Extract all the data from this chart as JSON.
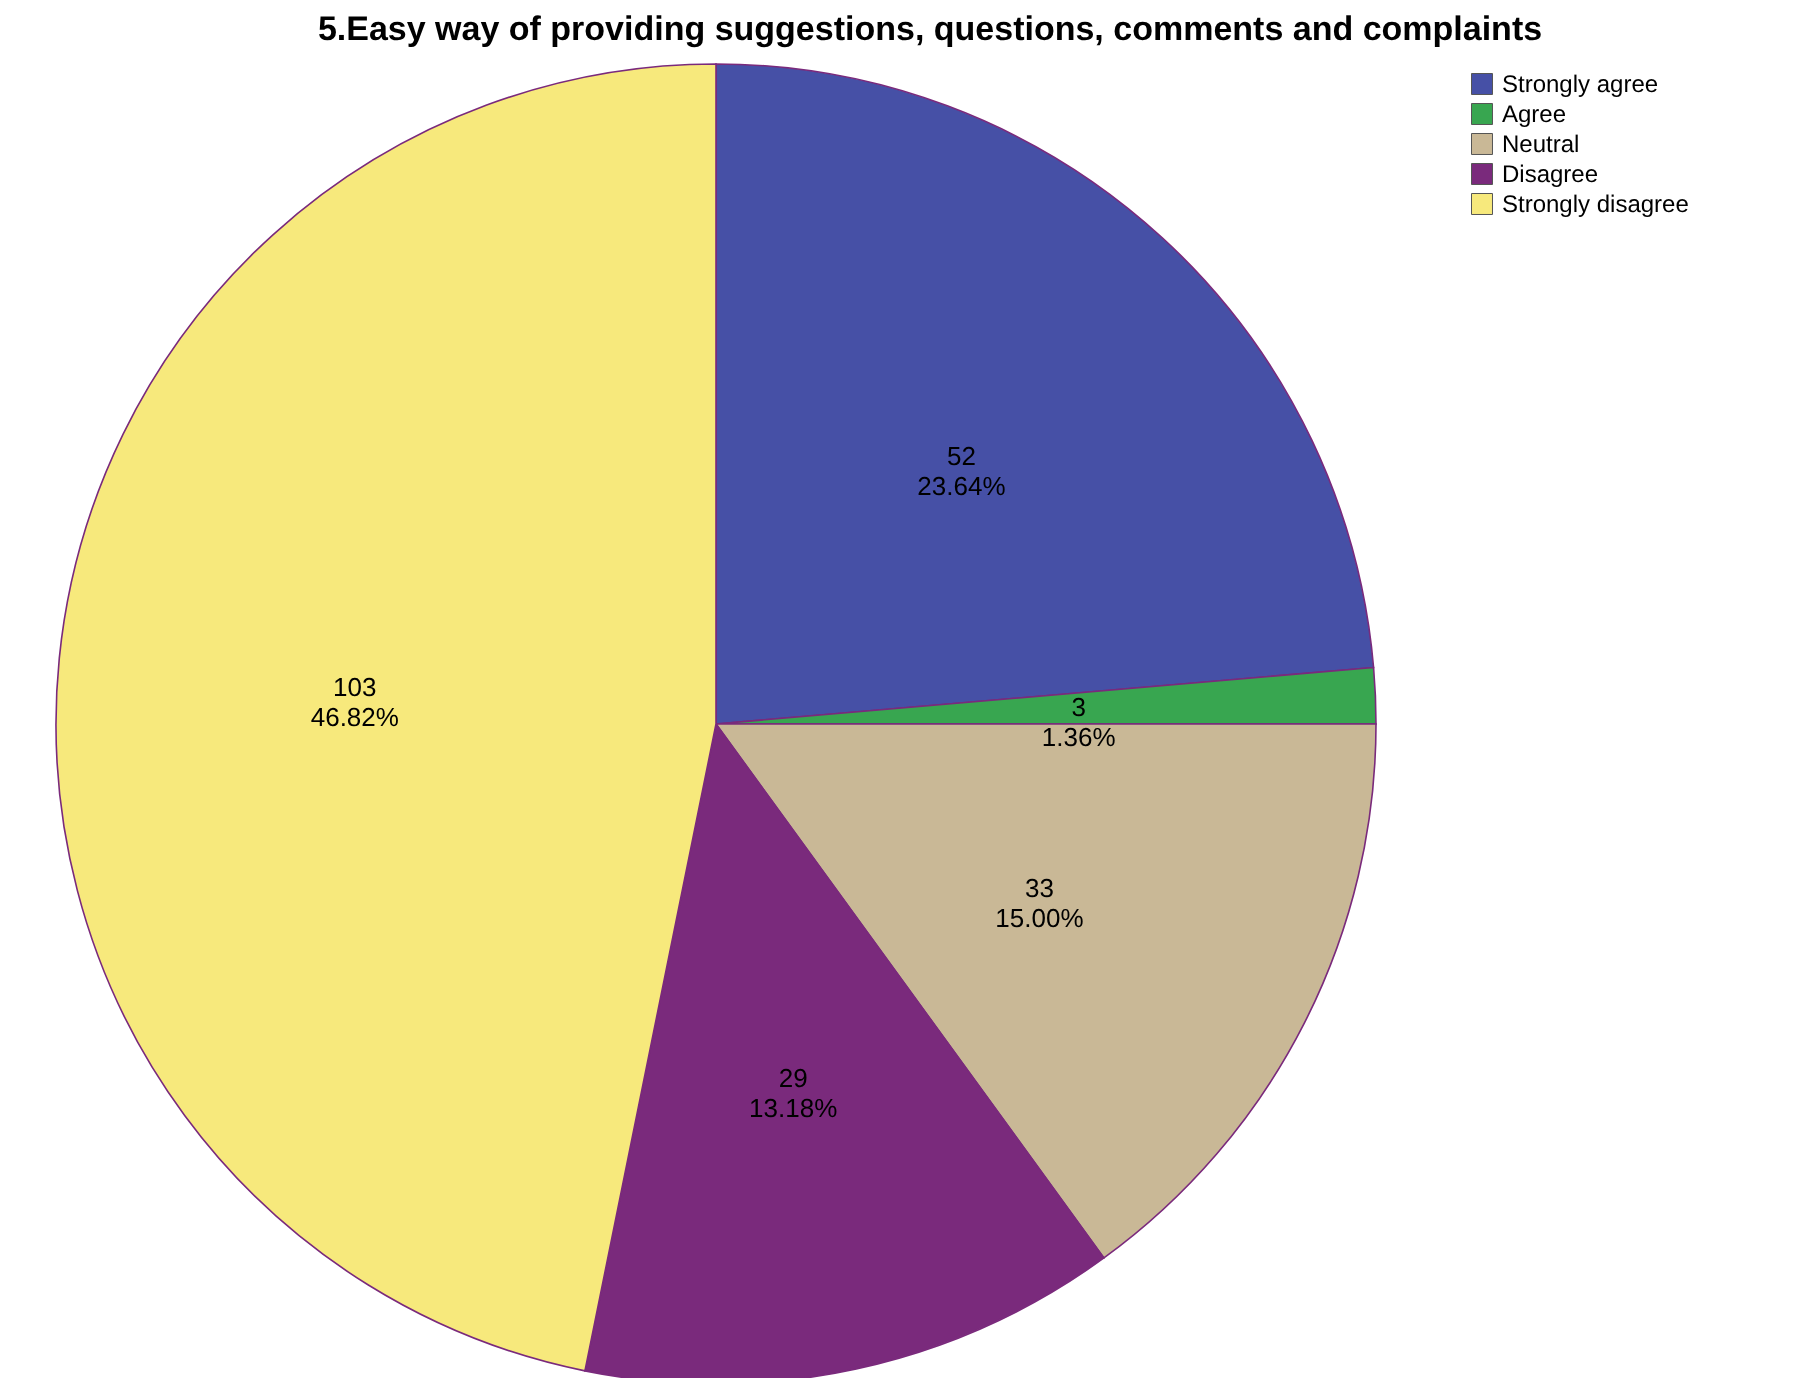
{
  "chart_data": {
    "type": "pie",
    "title": "5.Easy way of providing suggestions, questions, comments and complaints",
    "categories": [
      "Strongly agree",
      "Agree",
      "Neutral",
      "Disagree",
      "Strongly disagree"
    ],
    "values": [
      52,
      3,
      33,
      29,
      103
    ],
    "colors": [
      "#4650a6",
      "#38a650",
      "#c9b896",
      "#7a2a7c",
      "#f7e97c"
    ],
    "value_labels": [
      "52\n23.64%",
      "3\n1.36%",
      "33\n15.00%",
      "29\n13.18%",
      "103\n46.82%"
    ],
    "legend": "top right"
  }
}
